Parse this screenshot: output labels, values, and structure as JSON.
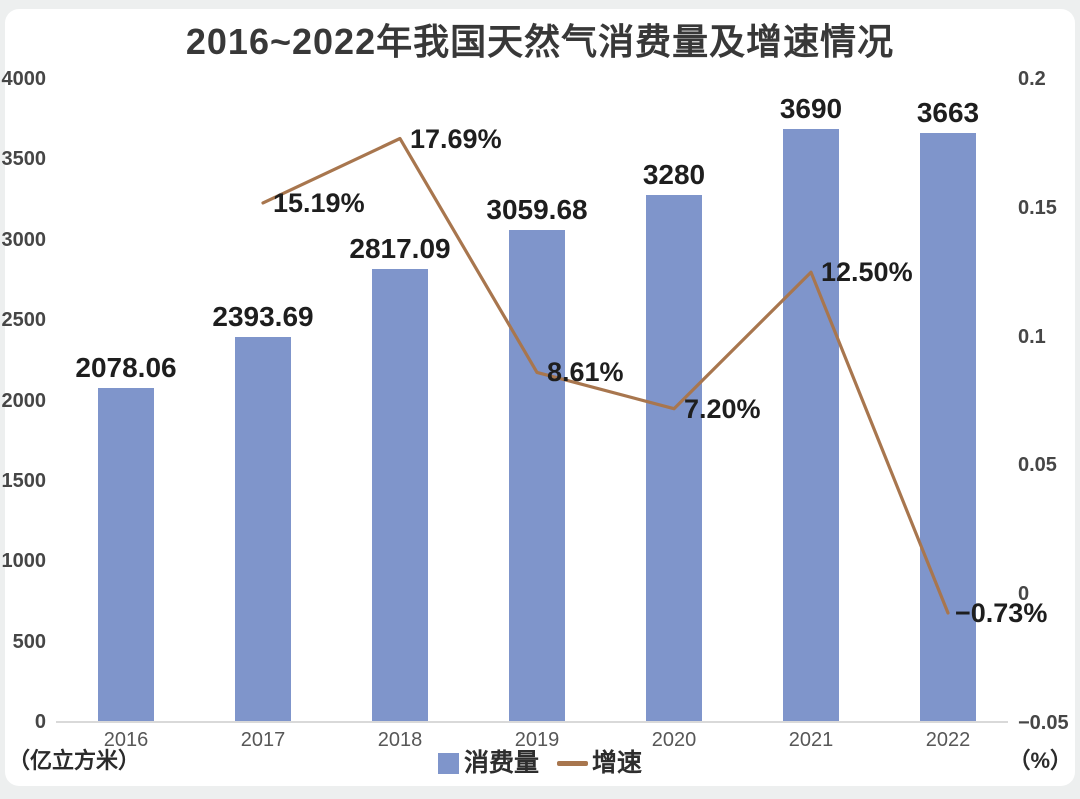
{
  "title": "2016~2022年我国天然气消费量及增速情况",
  "chart_data": {
    "type": "bar+line combo",
    "title": "2016~2022年我国天然气消费量及增速情况",
    "categories": [
      "2016",
      "2017",
      "2018",
      "2019",
      "2020",
      "2021",
      "2022"
    ],
    "series": [
      {
        "name": "消费量",
        "type": "bar",
        "axis": "left",
        "color": "#7f95cb",
        "values": [
          2078.06,
          2393.69,
          2817.09,
          3059.68,
          3280,
          3690,
          3663
        ],
        "labels": [
          "2078.06",
          "2393.69",
          "2817.09",
          "3059.68",
          "3280",
          "3690",
          "3663"
        ]
      },
      {
        "name": "增速",
        "type": "line",
        "axis": "right",
        "color": "#a8764e",
        "x": [
          "2017",
          "2018",
          "2019",
          "2020",
          "2021",
          "2022"
        ],
        "values": [
          0.1519,
          0.1769,
          0.0861,
          0.072,
          0.125,
          -0.0073
        ],
        "labels": [
          "15.19%",
          "17.69%",
          "8.61%",
          "7.20%",
          "12.50%",
          "−0.73%"
        ]
      }
    ],
    "left_axis": {
      "label": "（亿立方米）",
      "min": 0,
      "max": 4000,
      "ticks": [
        {
          "v": 4000,
          "label": "4000"
        },
        {
          "v": 3500,
          "label": "3500"
        },
        {
          "v": 3000,
          "label": "3000"
        },
        {
          "v": 2500,
          "label": "2500"
        },
        {
          "v": 2000,
          "label": "2000"
        },
        {
          "v": 1500,
          "label": "1500"
        },
        {
          "v": 1000,
          "label": "1000"
        },
        {
          "v": 500,
          "label": "500"
        },
        {
          "v": 0,
          "label": "0"
        }
      ]
    },
    "right_axis": {
      "label": "（%）",
      "min": -0.05,
      "max": 0.2,
      "ticks": [
        {
          "v": 0.2,
          "label": "0.2"
        },
        {
          "v": 0.15,
          "label": "0.15"
        },
        {
          "v": 0.1,
          "label": "0.1"
        },
        {
          "v": 0.05,
          "label": "0.05"
        },
        {
          "v": 0,
          "label": "0"
        },
        {
          "v": -0.05,
          "label": "−0.05"
        }
      ]
    },
    "legend": [
      {
        "label": "消费量",
        "marker": "square",
        "color": "#7f95cb"
      },
      {
        "label": "增速",
        "marker": "line",
        "color": "#a8764e"
      }
    ],
    "grid": false,
    "legend_position": "bottom-center"
  }
}
